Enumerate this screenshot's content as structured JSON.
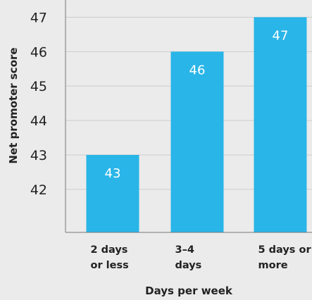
{
  "chart_data": {
    "type": "bar",
    "categories": [
      [
        "2 days",
        "or less"
      ],
      [
        "3–4",
        "days"
      ],
      [
        "5 days or",
        "more"
      ]
    ],
    "values": [
      43,
      46,
      47
    ],
    "data_labels": [
      "43",
      "46",
      "47"
    ],
    "ylabel": "Net promoter score",
    "xlabel": "Days per week",
    "yticks": [
      42,
      43,
      44,
      45,
      46,
      47
    ],
    "ylim": [
      40.75,
      47.5
    ],
    "grid": true,
    "legend": "none",
    "colors": {
      "bar": "#29b5e8",
      "grid": "#cccccc",
      "axis": "#777777",
      "background": "#ebebeb"
    }
  }
}
